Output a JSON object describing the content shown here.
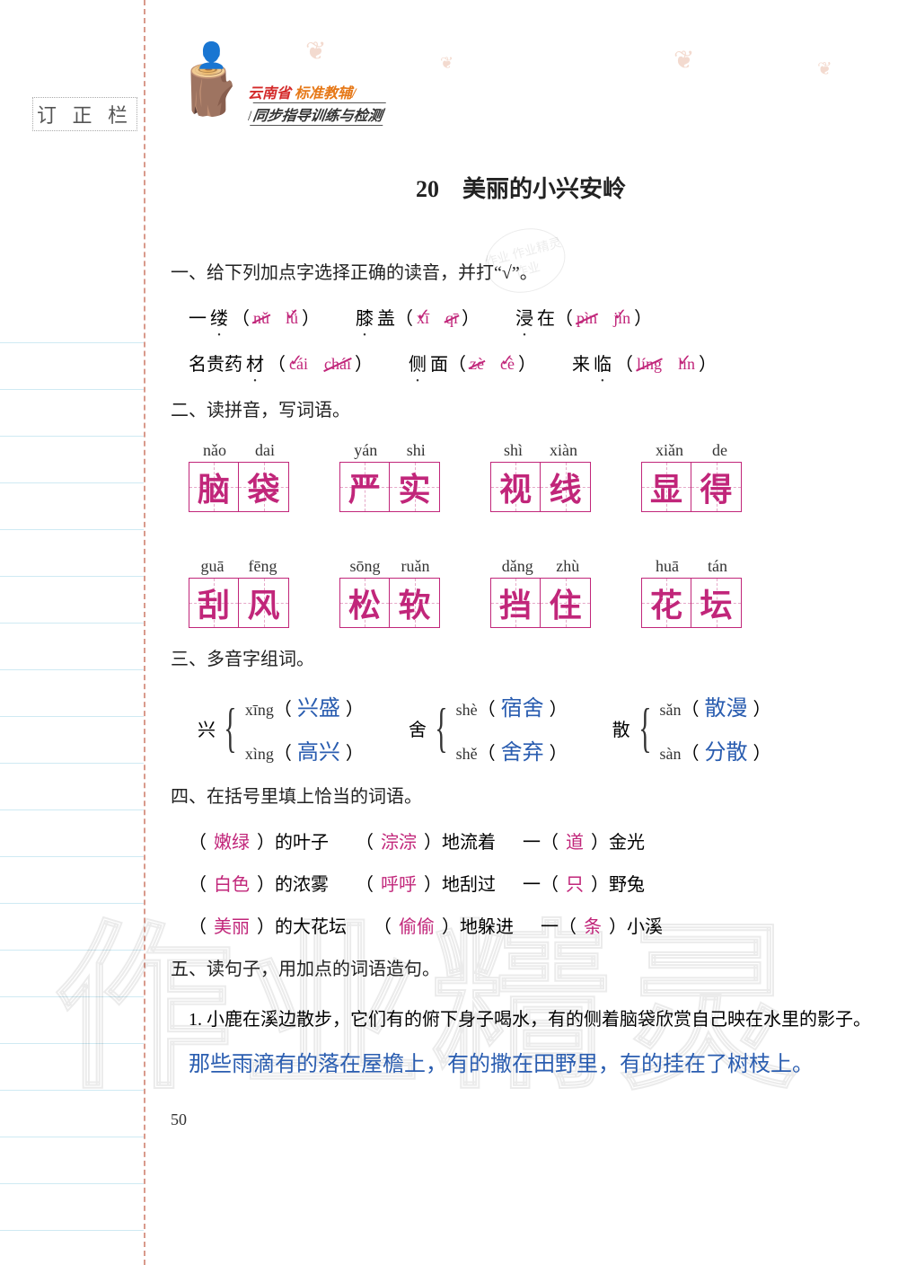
{
  "margin_label": "订 正 栏",
  "header": {
    "line1_red": "云南省",
    "line1_orange": "标准教辅",
    "line2": "同步指导训练与检测"
  },
  "lesson_title": "20　美丽的小兴安岭",
  "stamp_text": "作业\n作业精灵\n作业",
  "ex1": {
    "heading": "一、给下列加点字选择正确的读音，并打“√”。",
    "rows": [
      [
        {
          "word": "一缕",
          "dot_idx": 1,
          "p1": "nǔ",
          "p2": "lǚ",
          "wrong": "p1",
          "right": "p2"
        },
        {
          "word": "膝盖",
          "dot_idx": 0,
          "p1": "xī",
          "p2": "qī",
          "wrong": "p2",
          "right": "p1"
        },
        {
          "word": "浸在",
          "dot_idx": 0,
          "p1": "pìn",
          "p2": "jìn",
          "wrong": "p1",
          "right": "p2"
        }
      ],
      [
        {
          "word": "名贵药材",
          "dot_idx": 3,
          "p1": "cái",
          "p2": "chái",
          "wrong": "p2",
          "right": "p1"
        },
        {
          "word": "侧面",
          "dot_idx": 0,
          "p1": "zè",
          "p2": "cè",
          "wrong": "p1",
          "right": "p2"
        },
        {
          "word": "来临",
          "dot_idx": 1,
          "p1": "líng",
          "p2": "lín",
          "wrong": "p1",
          "right": "p2"
        }
      ]
    ]
  },
  "ex2": {
    "heading": "二、读拼音，写词语。",
    "words": [
      {
        "py": [
          "nǎo",
          "dai"
        ],
        "ch": [
          "脑",
          "袋"
        ]
      },
      {
        "py": [
          "yán",
          "shi"
        ],
        "ch": [
          "严",
          "实"
        ]
      },
      {
        "py": [
          "shì",
          "xiàn"
        ],
        "ch": [
          "视",
          "线"
        ]
      },
      {
        "py": [
          "xiǎn",
          "de"
        ],
        "ch": [
          "显",
          "得"
        ]
      },
      {
        "py": [
          "guā",
          "fēng"
        ],
        "ch": [
          "刮",
          "风"
        ]
      },
      {
        "py": [
          "sōng",
          "ruǎn"
        ],
        "ch": [
          "松",
          "软"
        ]
      },
      {
        "py": [
          "dǎng",
          "zhù"
        ],
        "ch": [
          "挡",
          "住"
        ]
      },
      {
        "py": [
          "huā",
          "tán"
        ],
        "ch": [
          "花",
          "坛"
        ]
      }
    ]
  },
  "ex3": {
    "heading": "三、多音字组词。",
    "groups": [
      {
        "char": "兴",
        "r": [
          {
            "py": "xīng",
            "ans": "兴盛"
          },
          {
            "py": "xìng",
            "ans": "高兴"
          }
        ]
      },
      {
        "char": "舍",
        "r": [
          {
            "py": "shè",
            "ans": "宿舍"
          },
          {
            "py": "shě",
            "ans": "舍弃"
          }
        ]
      },
      {
        "char": "散",
        "r": [
          {
            "py": "sǎn",
            "ans": "散漫"
          },
          {
            "py": "sàn",
            "ans": "分散"
          }
        ]
      }
    ]
  },
  "ex4": {
    "heading": "四、在括号里填上恰当的词语。",
    "rows": [
      [
        {
          "a": "嫩绿",
          "t": "）的叶子"
        },
        {
          "a": "淙淙",
          "t": "）地流着"
        },
        {
          "pre": "一（",
          "a": "道",
          "t": "）金光"
        }
      ],
      [
        {
          "a": "白色",
          "t": "）的浓雾"
        },
        {
          "a": "呼呼",
          "t": "）地刮过"
        },
        {
          "pre": "一（",
          "a": "只",
          "t": "）野兔"
        }
      ],
      [
        {
          "a": "美丽",
          "t": "）的大花坛"
        },
        {
          "a": "偷偷",
          "t": "）地躲进"
        },
        {
          "pre": "一（",
          "a": "条",
          "t": "）小溪"
        }
      ]
    ]
  },
  "ex5": {
    "heading": "五、读句子，用加点的词语造句。",
    "q": "1. 小鹿在溪边散步，它们有的俯下身子喝水，有的侧着脑袋欣赏自己映在水里的影子。",
    "ans": "那些雨滴有的落在屋檐上，有的撒在田野里，有的挂在了树枝上。"
  },
  "page_num": "50",
  "watermark": "作业精灵",
  "colors": {
    "pink": "#c1267a",
    "blue": "#2a5db0",
    "divider": "#d99a8c",
    "rule": "#cfeaf3"
  }
}
